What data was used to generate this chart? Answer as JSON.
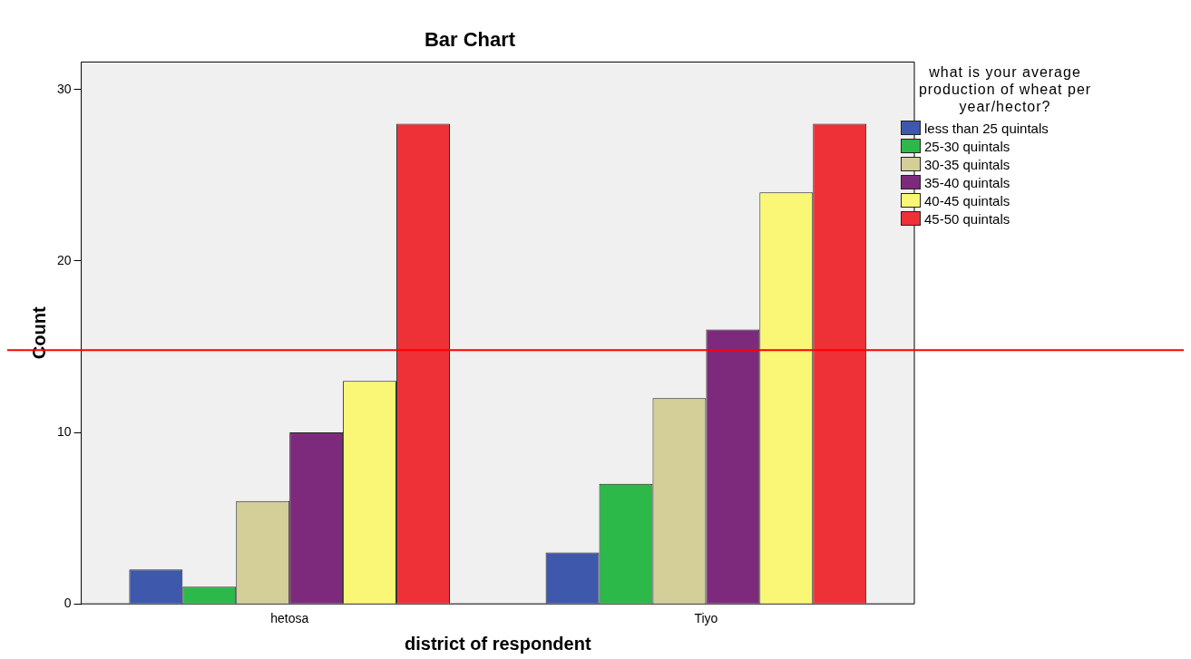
{
  "chart_data": {
    "type": "bar",
    "title": "Bar Chart",
    "xlabel": "district of respondent",
    "ylabel": "Count",
    "legend_title": "what is your average production of wheat per year/hector?",
    "categories": [
      "hetosa",
      "Tiyo"
    ],
    "series": [
      {
        "name": "less than 25 quintals",
        "color": "#3e58ac",
        "values": [
          2,
          3
        ]
      },
      {
        "name": "25-30 quintals",
        "color": "#2db84a",
        "values": [
          1,
          7
        ]
      },
      {
        "name": "30-35 quintals",
        "color": "#d4ce98",
        "values": [
          6,
          12
        ]
      },
      {
        "name": "35-40 quintals",
        "color": "#7d2a7d",
        "values": [
          10,
          16
        ]
      },
      {
        "name": "40-45 quintals",
        "color": "#fbf776",
        "values": [
          13,
          24
        ]
      },
      {
        "name": "45-50 quintals",
        "color": "#ee3137",
        "values": [
          28,
          28
        ]
      }
    ],
    "ylim": [
      0,
      31.6
    ],
    "yticks": [
      0,
      10,
      20,
      30
    ],
    "grid": false,
    "legend": "right",
    "ref_lines": [
      {
        "axis": "y",
        "value": 14.8,
        "color": "#ff0000"
      }
    ]
  }
}
